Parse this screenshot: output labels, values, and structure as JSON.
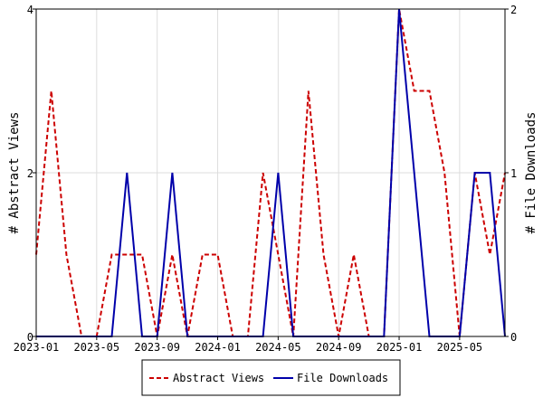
{
  "chart_data": {
    "type": "line",
    "title": "",
    "xlabel": "",
    "ylabel_left": "# Abstract Views",
    "ylabel_right": "# File Downloads",
    "x_ticks": [
      "2023-01",
      "2023-05",
      "2023-09",
      "2024-01",
      "2024-05",
      "2024-09",
      "2025-01",
      "2025-05"
    ],
    "ylim_left": [
      0,
      4
    ],
    "yticks_left": [
      "0",
      "2",
      "4"
    ],
    "ylim_right": [
      0,
      2
    ],
    "yticks_right": [
      "0",
      "1",
      "2"
    ],
    "legend_position": "bottom-center",
    "series": [
      {
        "name": "Abstract Views",
        "axis": "left",
        "style": "dashed",
        "color": "#cc0000",
        "points": [
          [
            "2023-01",
            1
          ],
          [
            "2023-02",
            3
          ],
          [
            "2023-03",
            1
          ],
          [
            "2023-04",
            0
          ],
          [
            "2023-05",
            0
          ],
          [
            "2023-06",
            1
          ],
          [
            "2023-07",
            1
          ],
          [
            "2023-08",
            1
          ],
          [
            "2023-09",
            0
          ],
          [
            "2023-10",
            1
          ],
          [
            "2023-11",
            0
          ],
          [
            "2023-12",
            1
          ],
          [
            "2024-01",
            1
          ],
          [
            "2024-02",
            0
          ],
          [
            "2024-03",
            0
          ],
          [
            "2024-04",
            2
          ],
          [
            "2024-05",
            1
          ],
          [
            "2024-06",
            0
          ],
          [
            "2024-07",
            3
          ],
          [
            "2024-08",
            1
          ],
          [
            "2024-09",
            0
          ],
          [
            "2024-10",
            1
          ],
          [
            "2024-11",
            0
          ],
          [
            "2024-12",
            0
          ],
          [
            "2025-01",
            4
          ],
          [
            "2025-02",
            3
          ],
          [
            "2025-03",
            3
          ],
          [
            "2025-04",
            2
          ],
          [
            "2025-05",
            0
          ],
          [
            "2025-06",
            2
          ],
          [
            "2025-07",
            1
          ],
          [
            "2025-08",
            2
          ]
        ]
      },
      {
        "name": "File Downloads",
        "axis": "right",
        "style": "solid",
        "color": "#0000aa",
        "points": [
          [
            "2023-01",
            0
          ],
          [
            "2023-02",
            0
          ],
          [
            "2023-03",
            0
          ],
          [
            "2023-04",
            0
          ],
          [
            "2023-05",
            0
          ],
          [
            "2023-06",
            0
          ],
          [
            "2023-07",
            1
          ],
          [
            "2023-08",
            0
          ],
          [
            "2023-09",
            0
          ],
          [
            "2023-10",
            1
          ],
          [
            "2023-11",
            0
          ],
          [
            "2023-12",
            0
          ],
          [
            "2024-01",
            0
          ],
          [
            "2024-02",
            0
          ],
          [
            "2024-03",
            0
          ],
          [
            "2024-04",
            0
          ],
          [
            "2024-05",
            1
          ],
          [
            "2024-06",
            0
          ],
          [
            "2024-07",
            0
          ],
          [
            "2024-08",
            0
          ],
          [
            "2024-09",
            0
          ],
          [
            "2024-10",
            0
          ],
          [
            "2024-11",
            0
          ],
          [
            "2024-12",
            0
          ],
          [
            "2025-01",
            2
          ],
          [
            "2025-02",
            1
          ],
          [
            "2025-03",
            0
          ],
          [
            "2025-04",
            0
          ],
          [
            "2025-05",
            0
          ],
          [
            "2025-06",
            1
          ],
          [
            "2025-07",
            1
          ],
          [
            "2025-08",
            0
          ]
        ]
      }
    ]
  }
}
